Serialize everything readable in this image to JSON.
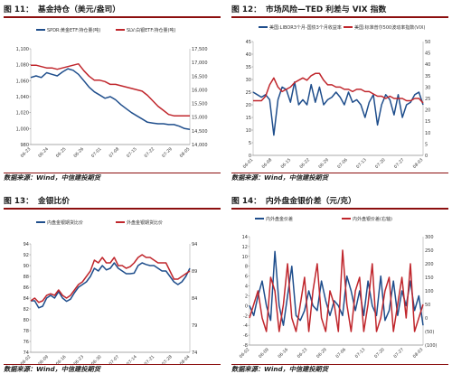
{
  "colors": {
    "blue": "#1f4e8c",
    "red": "#c0262c",
    "rule": "#8c0f0f"
  },
  "source_note": "数据来源：Wind，中信建投期货",
  "panels": {
    "p1": {
      "number": "图 11：",
      "title": "基金持仓（美元/盎司）"
    },
    "p2": {
      "number": "图 12：",
      "title": "市场风险—TED 利差与 VIX 指数"
    },
    "p3": {
      "number": "图 13：",
      "title": "金银比价"
    },
    "p4": {
      "number": "图 14：",
      "title": "内外盘金银价差（元/克）"
    }
  },
  "chart_data": [
    {
      "id": "p1",
      "type": "line",
      "title": "基金持仓（美元/盎司）",
      "x_ticks": [
        "06-23",
        "06-24",
        "06-25",
        "06-26",
        "07-01",
        "07-08",
        "07-15",
        "07-22",
        "07-29",
        "08-05"
      ],
      "left_axis": {
        "ylim": [
          980,
          1100
        ],
        "ticks": [
          "980",
          "1,000",
          "1,020",
          "1,040",
          "1,060",
          "1,080",
          "1,100"
        ]
      },
      "right_axis": {
        "ylim": [
          14000,
          17500
        ],
        "ticks": [
          "14,000",
          "14,500",
          "15,000",
          "15,500",
          "16,000",
          "16,500",
          "17,000",
          "17,500"
        ]
      },
      "legend_placement": "top",
      "series": [
        {
          "name": "SPDR:黄金ETF:持仓量(吨)",
          "axis": "left",
          "color": "#1f4e8c",
          "values": [
            1064,
            1066,
            1064,
            1070,
            1068,
            1066,
            1071,
            1075,
            1073,
            1068,
            1060,
            1052,
            1046,
            1042,
            1038,
            1040,
            1036,
            1030,
            1025,
            1020,
            1016,
            1012,
            1008,
            1007,
            1006,
            1006,
            1005,
            1005,
            1003,
            1000,
            999
          ]
        },
        {
          "name": "SLV:白银ETF:持仓量(吨)",
          "axis": "right",
          "color": "#c0262c",
          "values": [
            16900,
            16900,
            16850,
            16800,
            16800,
            16750,
            16800,
            16850,
            16900,
            16950,
            16700,
            16500,
            16350,
            16350,
            16300,
            16200,
            16200,
            16150,
            16100,
            16050,
            16000,
            15950,
            15800,
            15600,
            15400,
            15250,
            15100,
            15050,
            15050,
            15050,
            15050
          ]
        }
      ]
    },
    {
      "id": "p2",
      "type": "line",
      "title": "市场风险—TED 利差与 VIX 指数",
      "x_ticks": [
        "06-01",
        "06-08",
        "06-15",
        "06-22",
        "06-29",
        "07-06",
        "07-13",
        "07-20",
        "07-27",
        "08-03"
      ],
      "left_axis": {
        "ylim": [
          0,
          45
        ],
        "ticks": [
          "0",
          "5",
          "10",
          "15",
          "20",
          "25",
          "30",
          "35",
          "40",
          "45"
        ]
      },
      "right_axis": {
        "ylim": [
          0,
          50
        ],
        "ticks": [
          "0",
          "5",
          "10",
          "15",
          "20",
          "25",
          "30",
          "35",
          "40",
          "45",
          "50"
        ]
      },
      "legend_placement": "top",
      "series": [
        {
          "name": "美国:LIBOR3个月-国债3个月收益率",
          "axis": "left",
          "color": "#1f4e8c",
          "values": [
            25,
            24,
            23,
            24,
            22,
            8,
            22,
            27,
            26,
            21,
            29,
            20,
            22,
            20,
            28,
            21,
            27,
            20,
            22,
            23,
            25,
            23,
            20,
            25,
            21,
            22,
            20,
            15,
            21,
            24,
            12,
            20,
            24,
            22,
            16,
            24,
            15,
            20,
            21,
            24,
            25,
            20
          ]
        },
        {
          "name": "美国:标准普尔500波动率指数(VIX)",
          "axis": "right",
          "color": "#c0262c",
          "values": [
            24,
            24,
            24,
            26,
            31,
            34,
            30,
            28,
            29,
            30,
            32,
            33,
            34,
            33,
            35,
            36,
            36,
            33,
            31,
            31,
            30,
            30,
            29,
            29,
            28,
            29,
            29,
            28,
            28,
            27,
            26,
            26,
            25,
            26,
            25,
            25,
            25,
            24,
            24,
            25,
            25,
            23
          ]
        }
      ]
    },
    {
      "id": "p3",
      "type": "line",
      "title": "金银比价",
      "x_ticks": [
        "06-02",
        "06-09",
        "06-16",
        "06-23",
        "06-30",
        "07-07",
        "07-14",
        "07-21",
        "07-28",
        "08-04"
      ],
      "left_axis": {
        "ylim": [
          74,
          94
        ],
        "ticks": [
          "74",
          "76",
          "78",
          "80",
          "82",
          "84",
          "86",
          "88",
          "90",
          "92",
          "94"
        ]
      },
      "right_axis": {
        "ylim": [
          74,
          94
        ],
        "ticks": [
          "74",
          "79",
          "84",
          "89",
          "94"
        ]
      },
      "legend_placement": "top",
      "series": [
        {
          "name": "内盘金银期货比价",
          "axis": "left",
          "color": "#1f4e8c",
          "values": [
            83.5,
            83.5,
            82.2,
            82.5,
            84.0,
            84.5,
            84.0,
            85.2,
            84.0,
            83.4,
            83.8,
            85.0,
            86.0,
            86.5,
            87.0,
            88.0,
            89.5,
            89.0,
            90.0,
            89.2,
            89.5,
            90.5,
            89.5,
            89.0,
            88.5,
            88.5,
            88.6,
            90.0,
            90.5,
            90.2,
            90.0,
            90.0,
            89.5,
            89.0,
            89.0,
            88.0,
            87.0,
            86.5,
            87.0,
            88.0,
            89.5
          ]
        },
        {
          "name": "外盘金银期货比价",
          "axis": "right",
          "color": "#c0262c",
          "values": [
            83.5,
            84.0,
            83.2,
            83.5,
            84.5,
            84.8,
            84.5,
            85.5,
            84.5,
            84.0,
            84.5,
            85.5,
            86.5,
            87.0,
            88.0,
            89.0,
            91.0,
            90.5,
            91.5,
            90.5,
            90.5,
            91.5,
            90.0,
            90.0,
            89.5,
            89.8,
            90.5,
            91.5,
            92.0,
            91.5,
            91.5,
            91.0,
            90.5,
            90.5,
            90.5,
            89.0,
            87.5,
            87.5,
            88.0,
            88.5,
            89.0
          ]
        }
      ]
    },
    {
      "id": "p4",
      "type": "line",
      "title": "内外盘金银价差（元/克）",
      "x_ticks": [
        "06-02",
        "06-09",
        "06-16",
        "06-23",
        "06-29",
        "07-06",
        "07-13",
        "07-20",
        "07-27",
        "08-03"
      ],
      "left_axis": {
        "ylim": [
          -8,
          14
        ],
        "ticks": [
          "-8",
          "-6",
          "-4",
          "-2",
          "0",
          "2",
          "4",
          "6",
          "8",
          "10",
          "12",
          "14"
        ]
      },
      "right_axis": {
        "ylim": [
          -100,
          300
        ],
        "ticks": [
          "(100)",
          "(50)",
          "0",
          "50",
          "100",
          "150",
          "200",
          "250",
          "300"
        ]
      },
      "legend_placement": "top",
      "series": [
        {
          "name": "内外盘金价差",
          "axis": "left",
          "color": "#1f4e8c",
          "values": [
            0,
            -2,
            2,
            5,
            0,
            -3,
            11,
            0,
            -4,
            2,
            8,
            -2,
            -3,
            -1,
            3,
            0,
            -1,
            5,
            1,
            -2,
            1,
            0,
            -2,
            6,
            3,
            -1,
            3,
            -2,
            5,
            0,
            -2,
            6,
            -3,
            -1,
            5,
            -2,
            3,
            0,
            5,
            -1,
            2,
            -4
          ]
        },
        {
          "name": "内外盘银价差(右轴)",
          "axis": "right",
          "color": "#c0262c",
          "values": [
            0,
            50,
            100,
            0,
            -50,
            150,
            100,
            -50,
            50,
            200,
            0,
            -50,
            50,
            150,
            -50,
            100,
            200,
            0,
            -50,
            100,
            50,
            -50,
            250,
            50,
            -50,
            100,
            150,
            -50,
            50,
            200,
            -50,
            0,
            100,
            150,
            -50,
            50,
            150,
            0,
            200,
            -50,
            0,
            50
          ]
        }
      ]
    }
  ]
}
